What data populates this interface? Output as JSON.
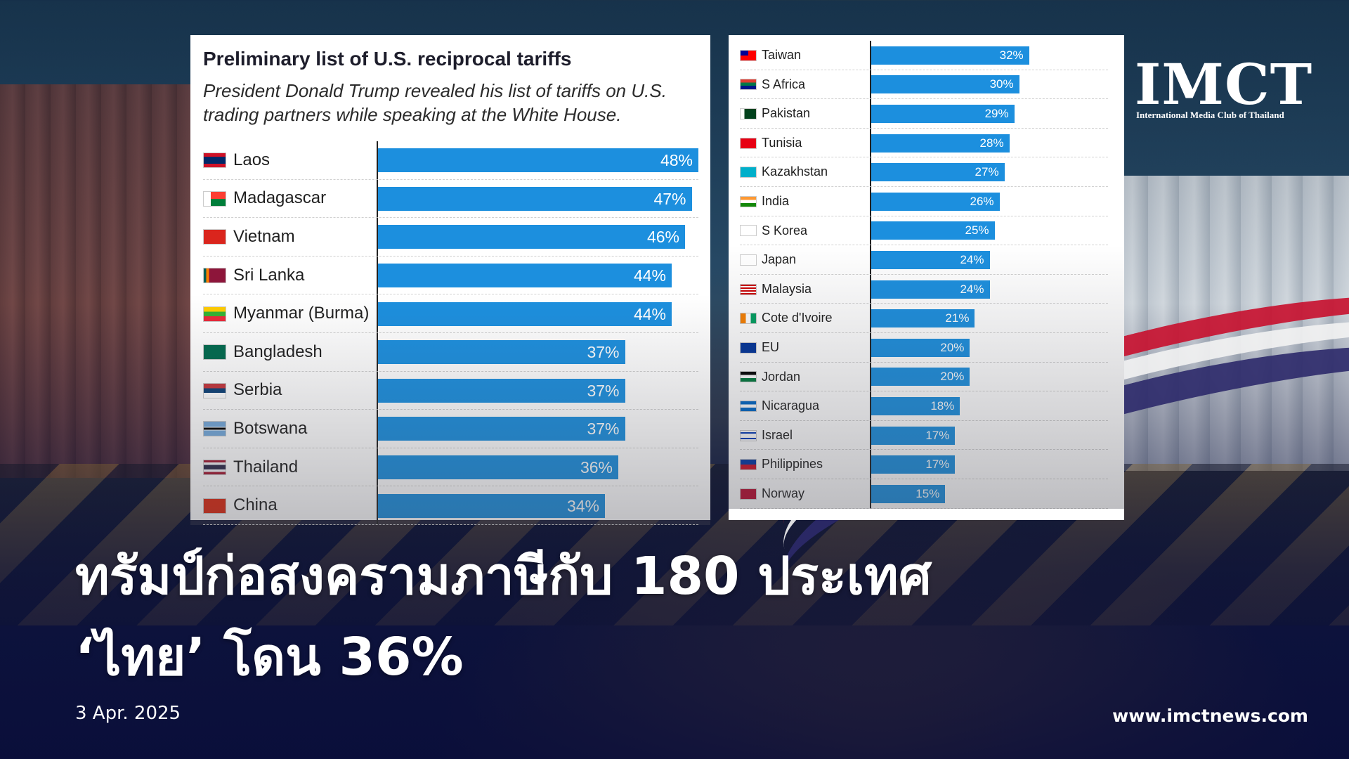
{
  "page": {
    "headline_line1": "ทรัมป์ก่อสงครามภาษีกับ 180 ประเทศ",
    "headline_line2": "‘ไทย’ โดน 36%",
    "date": "3 Apr. 2025",
    "website": "www.imctnews.com"
  },
  "logo": {
    "text": "IMCT",
    "subtitle": "International Media Club of Thailand"
  },
  "colors": {
    "bar": "#1c8fde",
    "bar_text": "#ffffff"
  },
  "chart_data": [
    {
      "type": "bar",
      "orientation": "horizontal",
      "title": "Preliminary list of U.S. reciprocal tariffs",
      "subtitle": "President Donald Trump revealed his list of tariffs on U.S. trading partners while speaking at the White House.",
      "categories": [
        "Laos",
        "Madagascar",
        "Vietnam",
        "Sri Lanka",
        "Myanmar (Burma)",
        "Bangladesh",
        "Serbia",
        "Botswana",
        "Thailand",
        "China"
      ],
      "values": [
        48,
        47,
        46,
        44,
        44,
        37,
        37,
        37,
        36,
        34
      ],
      "value_labels": [
        "48%",
        "47%",
        "46%",
        "44%",
        "44%",
        "37%",
        "37%",
        "37%",
        "36%",
        "34%"
      ],
      "xlim": [
        0,
        48
      ],
      "grid": false,
      "flags": [
        "laos",
        "madagascar",
        "vietnam",
        "sri-lanka",
        "myanmar",
        "bangladesh",
        "serbia",
        "botswana",
        "thailand",
        "china"
      ]
    },
    {
      "type": "bar",
      "orientation": "horizontal",
      "categories": [
        "Taiwan",
        "S Africa",
        "Pakistan",
        "Tunisia",
        "Kazakhstan",
        "India",
        "S Korea",
        "Japan",
        "Malaysia",
        "Cote d'Ivoire",
        "EU",
        "Jordan",
        "Nicaragua",
        "Israel",
        "Philippines",
        "Norway"
      ],
      "values": [
        32,
        30,
        29,
        28,
        27,
        26,
        25,
        24,
        24,
        21,
        20,
        20,
        18,
        17,
        17,
        15
      ],
      "value_labels": [
        "32%",
        "30%",
        "29%",
        "28%",
        "27%",
        "26%",
        "25%",
        "24%",
        "24%",
        "21%",
        "20%",
        "20%",
        "18%",
        "17%",
        "17%",
        "15%"
      ],
      "xlim": [
        0,
        48
      ],
      "grid": false,
      "flags": [
        "taiwan",
        "south-africa",
        "pakistan",
        "tunisia",
        "kazakhstan",
        "india",
        "south-korea",
        "japan",
        "malaysia",
        "cote-divoire",
        "eu",
        "jordan",
        "nicaragua",
        "israel",
        "philippines",
        "norway"
      ]
    }
  ]
}
